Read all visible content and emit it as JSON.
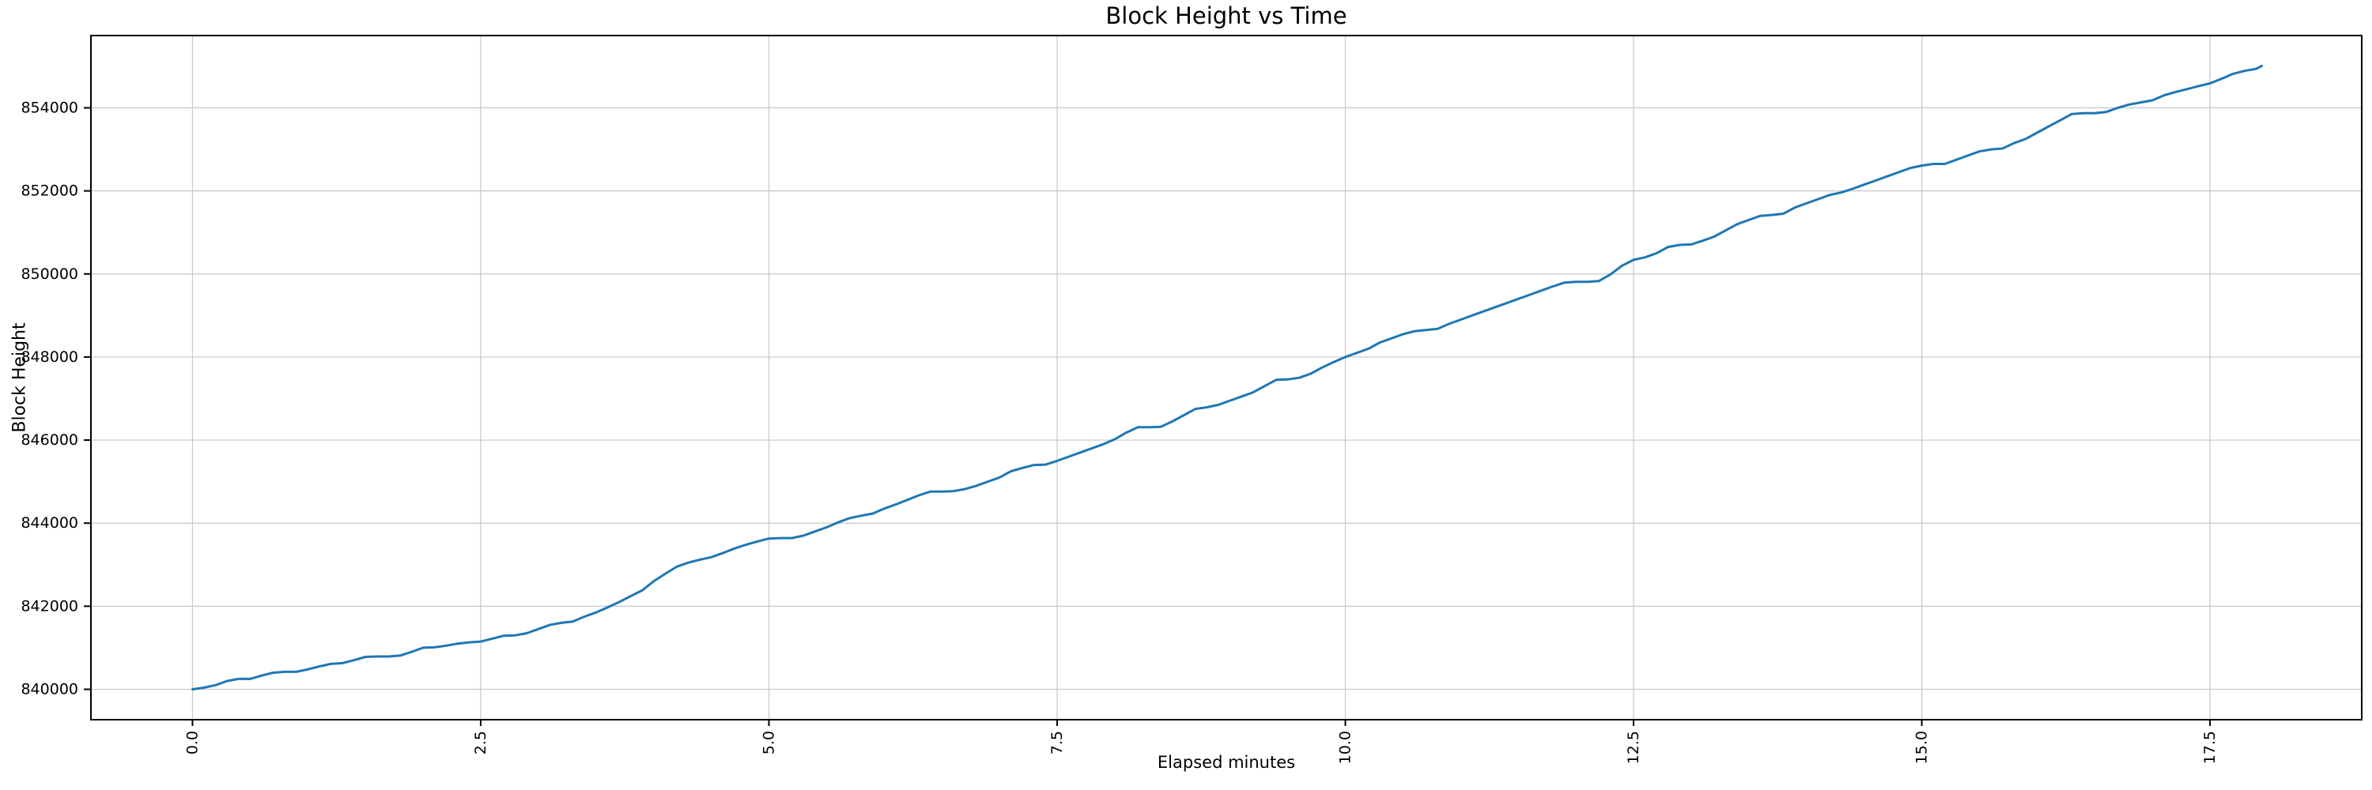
{
  "page": {
    "background": "#ffffff"
  },
  "chart_data": {
    "type": "line",
    "title": "Block Height vs Time",
    "xlabel": "Elapsed minutes",
    "ylabel": "Block Height",
    "grid": true,
    "grid_color": "#c8c8c8",
    "spine_color": "#000000",
    "tick_color": "#000000",
    "legend": "none",
    "x_tick_rotation_deg": 90,
    "xlim": [
      -0.881,
      18.816
    ],
    "ylim": [
      839268,
      855740
    ],
    "xticks": [
      0.0,
      2.5,
      5.0,
      7.5,
      10.0,
      12.5,
      15.0,
      17.5
    ],
    "xtick_labels": [
      "0.0",
      "2.5",
      "5.0",
      "7.5",
      "10.0",
      "12.5",
      "15.0",
      "17.5"
    ],
    "yticks": [
      840000,
      842000,
      844000,
      846000,
      848000,
      850000,
      852000,
      854000
    ],
    "ytick_labels": [
      "840000",
      "842000",
      "844000",
      "846000",
      "848000",
      "850000",
      "852000",
      "854000"
    ],
    "series": [
      {
        "name": "block_height",
        "color": "#1f77b4",
        "points": [
          [
            0.0,
            840000
          ],
          [
            0.1,
            840040
          ],
          [
            0.2,
            840100
          ],
          [
            0.3,
            840200
          ],
          [
            0.4,
            840250
          ],
          [
            0.5,
            840250
          ],
          [
            0.6,
            840330
          ],
          [
            0.7,
            840400
          ],
          [
            0.8,
            840420
          ],
          [
            0.9,
            840420
          ],
          [
            1.0,
            840480
          ],
          [
            1.1,
            840550
          ],
          [
            1.2,
            840610
          ],
          [
            1.3,
            840630
          ],
          [
            1.4,
            840700
          ],
          [
            1.5,
            840780
          ],
          [
            1.6,
            840790
          ],
          [
            1.7,
            840790
          ],
          [
            1.8,
            840810
          ],
          [
            1.9,
            840900
          ],
          [
            2.0,
            841000
          ],
          [
            2.1,
            841010
          ],
          [
            2.2,
            841050
          ],
          [
            2.3,
            841100
          ],
          [
            2.4,
            841130
          ],
          [
            2.5,
            841150
          ],
          [
            2.6,
            841220
          ],
          [
            2.7,
            841290
          ],
          [
            2.8,
            841300
          ],
          [
            2.9,
            841350
          ],
          [
            3.0,
            841450
          ],
          [
            3.1,
            841550
          ],
          [
            3.2,
            841600
          ],
          [
            3.3,
            841630
          ],
          [
            3.4,
            841750
          ],
          [
            3.5,
            841850
          ],
          [
            3.6,
            841970
          ],
          [
            3.7,
            842100
          ],
          [
            3.8,
            842240
          ],
          [
            3.9,
            842380
          ],
          [
            4.0,
            842600
          ],
          [
            4.1,
            842780
          ],
          [
            4.2,
            842950
          ],
          [
            4.3,
            843050
          ],
          [
            4.4,
            843120
          ],
          [
            4.5,
            843180
          ],
          [
            4.6,
            843280
          ],
          [
            4.7,
            843390
          ],
          [
            4.8,
            843480
          ],
          [
            4.9,
            843560
          ],
          [
            5.0,
            843630
          ],
          [
            5.1,
            843640
          ],
          [
            5.2,
            843640
          ],
          [
            5.3,
            843700
          ],
          [
            5.4,
            843800
          ],
          [
            5.5,
            843900
          ],
          [
            5.6,
            844020
          ],
          [
            5.7,
            844120
          ],
          [
            5.8,
            844180
          ],
          [
            5.9,
            844230
          ],
          [
            6.0,
            844350
          ],
          [
            6.1,
            844450
          ],
          [
            6.2,
            844560
          ],
          [
            6.3,
            844670
          ],
          [
            6.4,
            844760
          ],
          [
            6.5,
            844760
          ],
          [
            6.6,
            844770
          ],
          [
            6.7,
            844820
          ],
          [
            6.8,
            844900
          ],
          [
            6.9,
            845000
          ],
          [
            7.0,
            845100
          ],
          [
            7.1,
            845250
          ],
          [
            7.2,
            845330
          ],
          [
            7.3,
            845400
          ],
          [
            7.4,
            845410
          ],
          [
            7.5,
            845500
          ],
          [
            7.6,
            845600
          ],
          [
            7.7,
            845700
          ],
          [
            7.8,
            845800
          ],
          [
            7.9,
            845900
          ],
          [
            8.0,
            846020
          ],
          [
            8.1,
            846180
          ],
          [
            8.2,
            846310
          ],
          [
            8.3,
            846310
          ],
          [
            8.4,
            846320
          ],
          [
            8.5,
            846450
          ],
          [
            8.6,
            846600
          ],
          [
            8.7,
            846750
          ],
          [
            8.8,
            846790
          ],
          [
            8.9,
            846850
          ],
          [
            9.0,
            846950
          ],
          [
            9.1,
            847050
          ],
          [
            9.2,
            847150
          ],
          [
            9.3,
            847300
          ],
          [
            9.4,
            847450
          ],
          [
            9.5,
            847460
          ],
          [
            9.6,
            847500
          ],
          [
            9.7,
            847600
          ],
          [
            9.8,
            847750
          ],
          [
            9.9,
            847880
          ],
          [
            10.0,
            848000
          ],
          [
            10.1,
            848100
          ],
          [
            10.2,
            848200
          ],
          [
            10.3,
            848350
          ],
          [
            10.4,
            848450
          ],
          [
            10.5,
            848550
          ],
          [
            10.6,
            848620
          ],
          [
            10.7,
            848650
          ],
          [
            10.8,
            848680
          ],
          [
            10.9,
            848800
          ],
          [
            11.0,
            848900
          ],
          [
            11.1,
            849000
          ],
          [
            11.2,
            849100
          ],
          [
            11.3,
            849200
          ],
          [
            11.4,
            849300
          ],
          [
            11.5,
            849400
          ],
          [
            11.6,
            849500
          ],
          [
            11.7,
            849600
          ],
          [
            11.8,
            849700
          ],
          [
            11.9,
            849790
          ],
          [
            12.0,
            849810
          ],
          [
            12.1,
            849810
          ],
          [
            12.2,
            849830
          ],
          [
            12.3,
            849990
          ],
          [
            12.4,
            850200
          ],
          [
            12.5,
            850340
          ],
          [
            12.6,
            850400
          ],
          [
            12.7,
            850500
          ],
          [
            12.8,
            850650
          ],
          [
            12.9,
            850700
          ],
          [
            13.0,
            850710
          ],
          [
            13.1,
            850800
          ],
          [
            13.2,
            850900
          ],
          [
            13.3,
            851050
          ],
          [
            13.4,
            851200
          ],
          [
            13.5,
            851300
          ],
          [
            13.6,
            851400
          ],
          [
            13.7,
            851420
          ],
          [
            13.8,
            851450
          ],
          [
            13.9,
            851600
          ],
          [
            14.0,
            851700
          ],
          [
            14.1,
            851800
          ],
          [
            14.2,
            851900
          ],
          [
            14.3,
            851960
          ],
          [
            14.4,
            852050
          ],
          [
            14.5,
            852150
          ],
          [
            14.6,
            852250
          ],
          [
            14.7,
            852350
          ],
          [
            14.8,
            852450
          ],
          [
            14.9,
            852550
          ],
          [
            15.0,
            852610
          ],
          [
            15.1,
            852650
          ],
          [
            15.2,
            852650
          ],
          [
            15.3,
            852750
          ],
          [
            15.4,
            852850
          ],
          [
            15.5,
            852950
          ],
          [
            15.6,
            853000
          ],
          [
            15.7,
            853020
          ],
          [
            15.8,
            853150
          ],
          [
            15.9,
            853250
          ],
          [
            16.0,
            853400
          ],
          [
            16.1,
            853550
          ],
          [
            16.2,
            853700
          ],
          [
            16.3,
            853850
          ],
          [
            16.4,
            853870
          ],
          [
            16.5,
            853870
          ],
          [
            16.6,
            853900
          ],
          [
            16.7,
            854000
          ],
          [
            16.8,
            854080
          ],
          [
            16.9,
            854130
          ],
          [
            17.0,
            854180
          ],
          [
            17.1,
            854300
          ],
          [
            17.2,
            854380
          ],
          [
            17.3,
            854450
          ],
          [
            17.4,
            854520
          ],
          [
            17.5,
            854590
          ],
          [
            17.6,
            854700
          ],
          [
            17.7,
            854820
          ],
          [
            17.8,
            854890
          ],
          [
            17.9,
            854940
          ],
          [
            17.95,
            855010
          ]
        ]
      }
    ]
  }
}
